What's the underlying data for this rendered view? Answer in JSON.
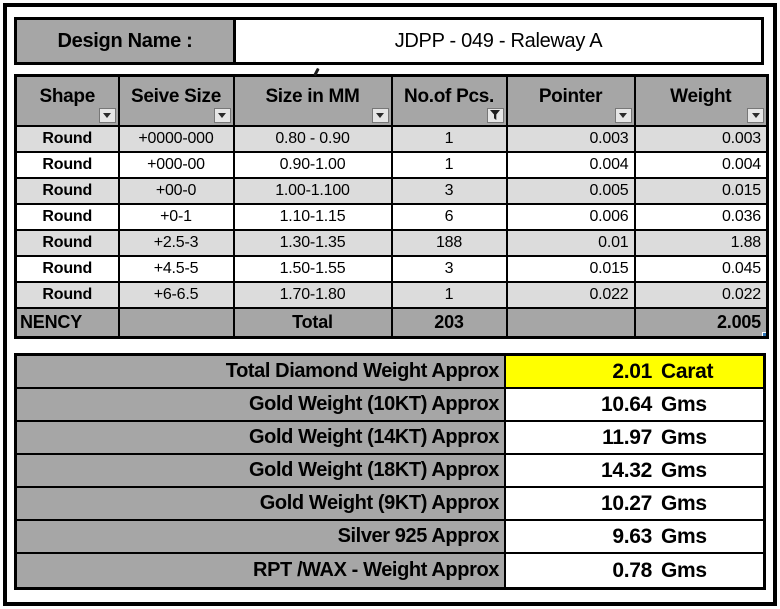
{
  "design": {
    "label": "Design Name :",
    "value": "JDPP - 049 - Raleway A"
  },
  "table": {
    "columns": [
      {
        "label": "Shape",
        "filter_icon": "chevron-down-icon",
        "filter_state": "inactive"
      },
      {
        "label": "Seive Size",
        "filter_icon": "chevron-down-icon",
        "filter_state": "inactive"
      },
      {
        "label": "Size in MM",
        "filter_icon": "chevron-down-icon",
        "filter_state": "inactive"
      },
      {
        "label": "No.of Pcs.",
        "filter_icon": "funnel-icon",
        "filter_state": "active"
      },
      {
        "label": "Pointer",
        "filter_icon": "chevron-down-icon",
        "filter_state": "inactive"
      },
      {
        "label": "Weight",
        "filter_icon": "chevron-down-icon",
        "filter_state": "inactive"
      }
    ],
    "rows": [
      [
        "Round",
        "+0000-000",
        "0.80 - 0.90",
        "1",
        "0.003",
        "0.003"
      ],
      [
        "Round",
        "+000-00",
        "0.90-1.00",
        "1",
        "0.004",
        "0.004"
      ],
      [
        "Round",
        "+00-0",
        "1.00-1.100",
        "3",
        "0.005",
        "0.015"
      ],
      [
        "Round",
        "+0-1",
        "1.10-1.15",
        "6",
        "0.006",
        "0.036"
      ],
      [
        "Round",
        "+2.5-3",
        "1.30-1.35",
        "188",
        "0.01",
        "1.88"
      ],
      [
        "Round",
        "+4.5-5",
        "1.50-1.55",
        "3",
        "0.015",
        "0.045"
      ],
      [
        "Round",
        "+6-6.5",
        "1.70-1.80",
        "1",
        "0.022",
        "0.022"
      ]
    ],
    "total_row": {
      "label": "NENCY",
      "total_label": "Total",
      "pieces": "203",
      "weight": "2.005"
    }
  },
  "summary": {
    "rows": [
      {
        "label": "Total Diamond Weight Approx",
        "value": "2.01",
        "unit": "Carat",
        "highlight": true
      },
      {
        "label": "Gold Weight (10KT) Approx",
        "value": "10.64",
        "unit": "Gms",
        "highlight": false
      },
      {
        "label": "Gold Weight (14KT) Approx",
        "value": "11.97",
        "unit": "Gms",
        "highlight": false
      },
      {
        "label": "Gold Weight (18KT) Approx",
        "value": "14.32",
        "unit": "Gms",
        "highlight": false
      },
      {
        "label": "Gold Weight (9KT) Approx",
        "value": "10.27",
        "unit": "Gms",
        "highlight": false
      },
      {
        "label": "Silver 925 Approx",
        "value": "9.63",
        "unit": "Gms",
        "highlight": false
      },
      {
        "label": "RPT /WAX - Weight Approx",
        "value": "0.78",
        "unit": "Gms",
        "highlight": false
      }
    ]
  },
  "colors": {
    "header_gray": "#a6a6a6",
    "stripe_gray": "#dcdcdc",
    "highlight_yellow": "#ffff00",
    "fill_handle_blue": "#2e75b6",
    "border_black": "#000000"
  }
}
